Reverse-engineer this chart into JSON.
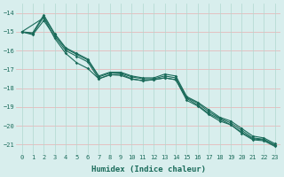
{
  "xlabel": "Humidex (Indice chaleur)",
  "bg_color": "#d8eeed",
  "grid_color_h": "#e8b0b0",
  "grid_color_v": "#b0d8d0",
  "line_color": "#1a6b5a",
  "xlim": [
    -0.5,
    23.5
  ],
  "ylim": [
    -21.5,
    -13.5
  ],
  "xticks": [
    0,
    1,
    2,
    3,
    4,
    5,
    6,
    7,
    8,
    9,
    10,
    11,
    12,
    13,
    14,
    15,
    16,
    17,
    18,
    19,
    20,
    21,
    22,
    23
  ],
  "yticks": [
    -14,
    -15,
    -16,
    -17,
    -18,
    -19,
    -20,
    -21
  ],
  "line1_x": [
    0,
    1,
    2,
    3,
    4,
    5,
    6,
    7,
    8,
    9,
    10,
    11,
    12,
    13,
    14,
    15,
    16,
    17,
    18,
    19,
    20,
    21,
    22,
    23
  ],
  "line1_y": [
    -15.0,
    -15.05,
    -14.1,
    -15.1,
    -15.85,
    -16.15,
    -16.45,
    -17.35,
    -17.15,
    -17.15,
    -17.35,
    -17.45,
    -17.45,
    -17.25,
    -17.35,
    -18.45,
    -18.75,
    -19.15,
    -19.55,
    -19.75,
    -20.15,
    -20.55,
    -20.65,
    -20.95
  ],
  "line2_x": [
    0,
    1,
    2,
    3,
    4,
    5,
    6,
    7,
    8,
    9,
    10,
    11,
    12,
    13,
    14,
    15,
    16,
    17,
    18,
    19,
    20,
    21,
    22,
    23
  ],
  "line2_y": [
    -15.0,
    -15.1,
    -14.2,
    -15.15,
    -15.9,
    -16.2,
    -16.5,
    -17.4,
    -17.2,
    -17.2,
    -17.4,
    -17.5,
    -17.5,
    -17.35,
    -17.45,
    -18.5,
    -18.8,
    -19.25,
    -19.6,
    -19.85,
    -20.25,
    -20.65,
    -20.72,
    -21.02
  ],
  "line3_x": [
    0,
    2,
    3,
    4,
    5,
    6,
    7,
    8,
    9,
    10,
    11,
    12,
    13,
    14,
    15,
    16,
    17,
    18,
    19,
    20,
    21,
    22,
    23
  ],
  "line3_y": [
    -15.0,
    -14.25,
    -15.35,
    -16.15,
    -16.65,
    -16.95,
    -17.5,
    -17.28,
    -17.32,
    -17.52,
    -17.6,
    -17.55,
    -17.45,
    -17.55,
    -18.55,
    -18.9,
    -19.35,
    -19.65,
    -19.95,
    -20.35,
    -20.7,
    -20.75,
    -21.05
  ],
  "line4_x": [
    0,
    1,
    2,
    3,
    4,
    5,
    6,
    7,
    8,
    9,
    10,
    11,
    12,
    13,
    14,
    15,
    16,
    17,
    18,
    19,
    20,
    21,
    22,
    23
  ],
  "line4_y": [
    -15.0,
    -15.15,
    -14.4,
    -15.25,
    -16.0,
    -16.3,
    -16.6,
    -17.5,
    -17.3,
    -17.25,
    -17.5,
    -17.6,
    -17.55,
    -17.45,
    -17.55,
    -18.65,
    -18.95,
    -19.4,
    -19.75,
    -19.95,
    -20.4,
    -20.75,
    -20.8,
    -21.1
  ],
  "marker": "D",
  "marker_size": 1.8,
  "line_width": 0.8,
  "xlabel_fontsize": 6.5,
  "tick_fontsize": 5.0
}
